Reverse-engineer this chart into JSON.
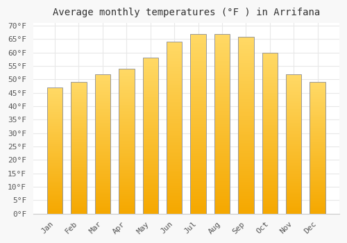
{
  "title": "Average monthly temperatures (°F ) in Arrifana",
  "months": [
    "Jan",
    "Feb",
    "Mar",
    "Apr",
    "May",
    "Jun",
    "Jul",
    "Aug",
    "Sep",
    "Oct",
    "Nov",
    "Dec"
  ],
  "values": [
    47,
    49,
    52,
    54,
    58,
    64,
    67,
    67,
    66,
    60,
    52,
    49
  ],
  "bar_color_bottom": "#F5A800",
  "bar_color_top": "#FFD966",
  "bar_edge_color": "#999999",
  "background_color": "#F8F8F8",
  "plot_bg_color": "#FFFFFF",
  "grid_color": "#E8E8E8",
  "ytick_min": 0,
  "ytick_max": 70,
  "ytick_step": 5,
  "title_fontsize": 10,
  "tick_fontsize": 8,
  "font_family": "monospace"
}
